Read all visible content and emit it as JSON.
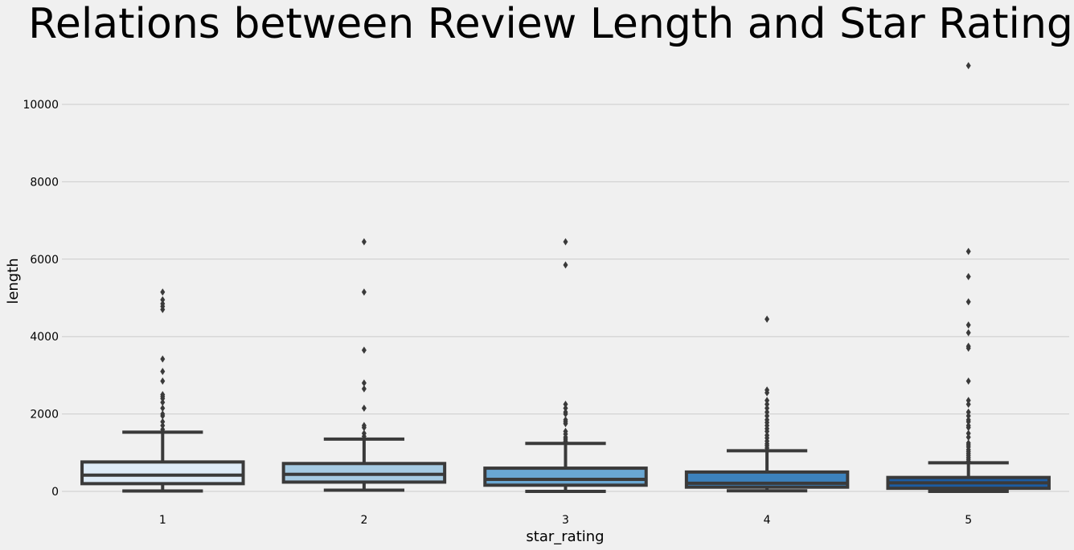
{
  "chart_data": {
    "type": "box",
    "title": "Relations between Review Length and Star Rating",
    "xlabel": "star_rating",
    "ylabel": "length",
    "categories": [
      "1",
      "2",
      "3",
      "4",
      "5"
    ],
    "ylim": [
      -150,
      11250
    ],
    "yticks": [
      0,
      2000,
      4000,
      6000,
      8000,
      10000
    ],
    "grid": "horizontal",
    "box_colors": [
      "#deebf7",
      "#a6cbe3",
      "#6aa7d3",
      "#3c82bd",
      "#1c5ca3"
    ],
    "line_color": "#3a3a3a",
    "boxes": [
      {
        "category": "1",
        "whisker_low": 10,
        "q1": 200,
        "median": 420,
        "q3": 760,
        "whisker_high": 1530,
        "outliers": [
          1600,
          1700,
          1800,
          1950,
          2000,
          2150,
          2300,
          2400,
          2450,
          2500,
          2850,
          3100,
          3420,
          4700,
          4780,
          4850,
          4950,
          5150
        ]
      },
      {
        "category": "2",
        "whisker_low": 30,
        "q1": 240,
        "median": 440,
        "q3": 720,
        "whisker_high": 1350,
        "outliers": [
          1420,
          1500,
          1650,
          1700,
          2150,
          2650,
          2800,
          3650,
          5150,
          6450
        ]
      },
      {
        "category": "3",
        "whisker_low": 0,
        "q1": 160,
        "median": 310,
        "q3": 600,
        "whisker_high": 1240,
        "outliers": [
          1300,
          1350,
          1400,
          1480,
          1550,
          1750,
          1800,
          1850,
          2000,
          2050,
          2150,
          2250,
          5850,
          6450
        ]
      },
      {
        "category": "4",
        "whisker_low": 15,
        "q1": 110,
        "median": 210,
        "q3": 500,
        "whisker_high": 1050,
        "outliers": [
          1120,
          1180,
          1230,
          1300,
          1380,
          1450,
          1550,
          1620,
          1700,
          1780,
          1850,
          1950,
          2050,
          2150,
          2250,
          2350,
          2550,
          2620,
          4450
        ]
      },
      {
        "category": "5",
        "whisker_low": 0,
        "q1": 80,
        "median": 220,
        "q3": 360,
        "whisker_high": 740,
        "outliers": [
          780,
          830,
          880,
          930,
          980,
          1030,
          1080,
          1150,
          1200,
          1250,
          1400,
          1500,
          1650,
          1700,
          1800,
          1850,
          1950,
          2050,
          2250,
          2350,
          2850,
          3700,
          3750,
          4100,
          4300,
          4900,
          5550,
          6200,
          11000
        ]
      }
    ]
  }
}
